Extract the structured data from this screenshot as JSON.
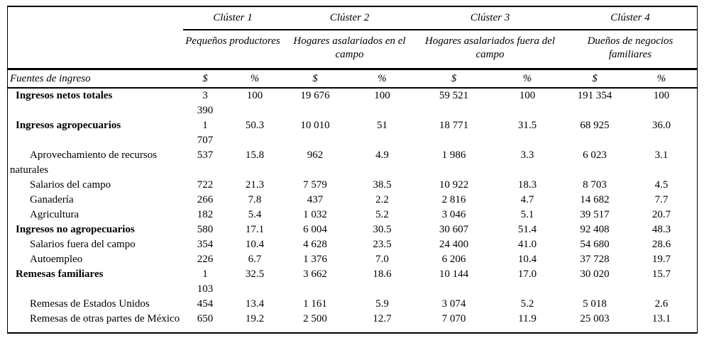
{
  "colors": {
    "text": "#000000",
    "background": "#ffffff",
    "rule": "#000000"
  },
  "table": {
    "row_header": "Fuentes de ingreso",
    "col_headers": [
      "$",
      "%"
    ],
    "clusters": [
      {
        "label": "Clúster 1",
        "subtitle": "Pequeños productores"
      },
      {
        "label": "Clúster 2",
        "subtitle": "Hogares asalariados en el campo"
      },
      {
        "label": "Clúster 3",
        "subtitle": "Hogares asalariados fuera del campo"
      },
      {
        "label": "Clúster 4",
        "subtitle": "Dueños de negocios familiares"
      }
    ],
    "rows": [
      {
        "label": "Ingresos netos totales",
        "bold": true,
        "values": [
          "3 390",
          "100",
          "19 676",
          "100",
          "59 521",
          "100",
          "191 354",
          "100"
        ]
      },
      {
        "label": "Ingresos agropecuarios",
        "bold": true,
        "values": [
          "1 707",
          "50.3",
          "10 010",
          "51",
          "18 771",
          "31.5",
          "68 925",
          "36.0"
        ]
      },
      {
        "label": "Aprovechamiento de recursos naturales",
        "bold": false,
        "values": [
          "537",
          "15.8",
          "962",
          "4.9",
          "1 986",
          "3.3",
          "6 023",
          "3.1"
        ]
      },
      {
        "label": "Salarios del campo",
        "bold": false,
        "values": [
          "722",
          "21.3",
          "7 579",
          "38.5",
          "10 922",
          "18.3",
          "8 703",
          "4.5"
        ]
      },
      {
        "label": "Ganadería",
        "bold": false,
        "values": [
          "266",
          "7.8",
          "437",
          "2.2",
          "2 816",
          "4.7",
          "14 682",
          "7.7"
        ]
      },
      {
        "label": "Agricultura",
        "bold": false,
        "values": [
          "182",
          "5.4",
          "1 032",
          "5.2",
          "3 046",
          "5.1",
          "39 517",
          "20.7"
        ]
      },
      {
        "label": "Ingresos no agropecuarios",
        "bold": true,
        "values": [
          "580",
          "17.1",
          "6 004",
          "30.5",
          "30 607",
          "51.4",
          "92 408",
          "48.3"
        ]
      },
      {
        "label": "Salarios fuera del campo",
        "bold": false,
        "values": [
          "354",
          "10.4",
          "4 628",
          "23.5",
          "24 400",
          "41.0",
          "54 680",
          "28.6"
        ]
      },
      {
        "label": "Autoempleo",
        "bold": false,
        "values": [
          "226",
          "6.7",
          "1 376",
          "7.0",
          "6 206",
          "10.4",
          "37 728",
          "19.7"
        ]
      },
      {
        "label": "Remesas familiares",
        "bold": true,
        "values": [
          "1 103",
          "32.5",
          "3 662",
          "18.6",
          "10 144",
          "17.0",
          "30 020",
          "15.7"
        ]
      },
      {
        "label": "Remesas de Estados Unidos",
        "bold": false,
        "values": [
          "454",
          "13.4",
          "1 161",
          "5.9",
          "3 074",
          "5.2",
          "5 018",
          "2.6"
        ]
      },
      {
        "label": "Remesas de otras partes de México",
        "bold": false,
        "values": [
          "650",
          "19.2",
          "2 500",
          "12.7",
          "7 070",
          "11.9",
          "25 003",
          "13.1"
        ]
      }
    ]
  }
}
